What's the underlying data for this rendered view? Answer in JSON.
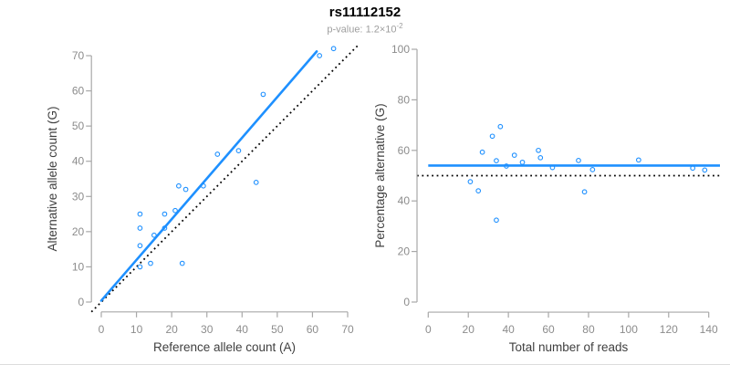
{
  "figure": {
    "title": "rs11112152",
    "pvalue_label": "p-value: ",
    "pvalue_mantissa": "1.2×10",
    "pvalue_exponent": "-2"
  },
  "style": {
    "accent_color": "#1E90FF",
    "dotted_line_color": "#000000",
    "axis_line_color": "#A8A8A8",
    "tick_label_color": "#8C8C8C",
    "axis_title_color": "#404040",
    "title_color": "#000000",
    "subtitle_color": "#9E9E9E",
    "background_color": "#FFFFFF"
  },
  "chart_data": [
    {
      "id": "allele-count-scatter",
      "type": "scatter",
      "xlabel": "Reference allele count (A)",
      "ylabel": "Alternative allele count (G)",
      "xlim": [
        0,
        70
      ],
      "ylim": [
        0,
        70
      ],
      "xticks": [
        0,
        10,
        20,
        30,
        40,
        50,
        60,
        70
      ],
      "yticks": [
        0,
        10,
        20,
        30,
        40,
        50,
        60,
        70
      ],
      "grid": false,
      "legend": "none",
      "points": [
        [
          11,
          25
        ],
        [
          11,
          21
        ],
        [
          11,
          16
        ],
        [
          11,
          10
        ],
        [
          14,
          11
        ],
        [
          15,
          19
        ],
        [
          18,
          25
        ],
        [
          18,
          21
        ],
        [
          21,
          26
        ],
        [
          22,
          33
        ],
        [
          23,
          11
        ],
        [
          24,
          32
        ],
        [
          29,
          33
        ],
        [
          33,
          42
        ],
        [
          39,
          43
        ],
        [
          44,
          34
        ],
        [
          46,
          59
        ],
        [
          62,
          70
        ],
        [
          66,
          72
        ]
      ],
      "regression_line": {
        "x1": 0,
        "y1": 0.4,
        "x2": 61.2,
        "y2": 71.2,
        "style": "solid"
      },
      "identity_line": {
        "slope": 1,
        "intercept": 0,
        "style": "dotted"
      }
    },
    {
      "id": "percentage-vs-reads-scatter",
      "type": "scatter",
      "xlabel": "Total number of reads",
      "ylabel": "Percentage alternative (G)",
      "xlim": [
        0,
        140
      ],
      "ylim": [
        0,
        100
      ],
      "xticks": [
        0,
        20,
        40,
        60,
        80,
        100,
        120,
        140
      ],
      "yticks": [
        0,
        20,
        40,
        60,
        80,
        100
      ],
      "grid": false,
      "legend": "none",
      "points": [
        [
          36,
          69.4
        ],
        [
          32,
          65.6
        ],
        [
          27,
          59.3
        ],
        [
          21,
          47.6
        ],
        [
          25,
          44.0
        ],
        [
          34,
          55.9
        ],
        [
          43,
          58.1
        ],
        [
          39,
          53.8
        ],
        [
          47,
          55.3
        ],
        [
          55,
          60.0
        ],
        [
          34,
          32.4
        ],
        [
          56,
          57.1
        ],
        [
          62,
          53.2
        ],
        [
          75,
          56.0
        ],
        [
          82,
          52.4
        ],
        [
          78,
          43.6
        ],
        [
          105,
          56.2
        ],
        [
          132,
          53.0
        ],
        [
          138,
          52.2
        ]
      ],
      "mean_line": {
        "y": 54,
        "style": "solid"
      },
      "reference_line": {
        "y": 50,
        "style": "dotted"
      }
    }
  ]
}
